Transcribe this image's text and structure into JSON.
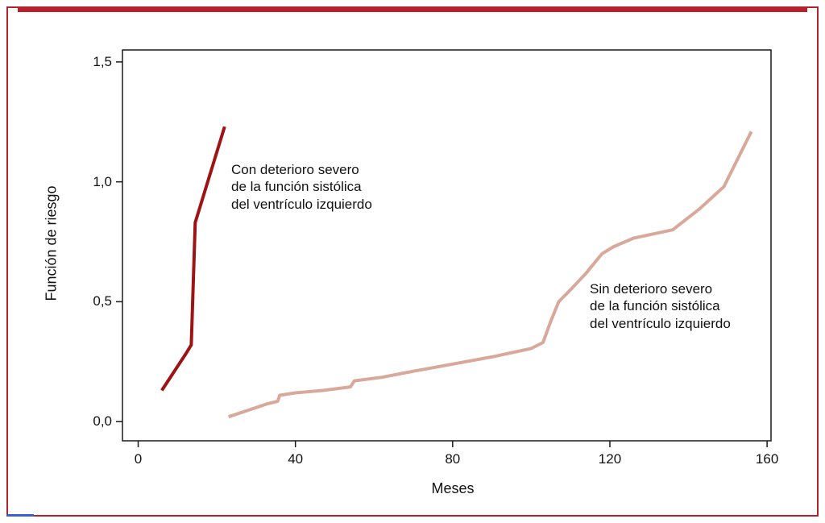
{
  "figure": {
    "border_color": "#b5222b",
    "top_rule_color": "#b5222b",
    "bottom_mark_color": "#3a5fd0",
    "background": "#ffffff"
  },
  "chart_data": {
    "type": "line",
    "title": "",
    "xlabel": "Meses",
    "ylabel": "Función de riesgo",
    "xlim": [
      -4,
      161
    ],
    "ylim": [
      -0.08,
      1.55
    ],
    "x_ticks": [
      0,
      40,
      80,
      120,
      160
    ],
    "x_tick_labels": [
      "0",
      "40",
      "80",
      "120",
      "160"
    ],
    "y_ticks": [
      0.0,
      0.5,
      1.0,
      1.5
    ],
    "y_tick_labels": [
      "0,0",
      "0,5",
      "1,0",
      "1,5"
    ],
    "grid": false,
    "frame": true,
    "legend_position": "inline-annotations",
    "series": [
      {
        "name": "Con deterioro severo de la función sistólica del ventrículo izquierdo",
        "color": "#9e1414",
        "width": 4,
        "points": [
          [
            6,
            0.13
          ],
          [
            12,
            0.28
          ],
          [
            13.5,
            0.32
          ],
          [
            14.5,
            0.83
          ],
          [
            22,
            1.23
          ]
        ]
      },
      {
        "name": "Sin deterioro severo de la función sistólica del ventrículo izquierdo",
        "color": "#d8a89b",
        "width": 4,
        "points": [
          [
            23,
            0.02
          ],
          [
            33,
            0.075
          ],
          [
            35.5,
            0.085
          ],
          [
            36,
            0.11
          ],
          [
            40,
            0.12
          ],
          [
            47,
            0.13
          ],
          [
            54,
            0.145
          ],
          [
            55,
            0.17
          ],
          [
            62,
            0.185
          ],
          [
            70,
            0.21
          ],
          [
            80,
            0.24
          ],
          [
            90,
            0.27
          ],
          [
            100,
            0.305
          ],
          [
            103,
            0.33
          ],
          [
            105,
            0.42
          ],
          [
            107,
            0.5
          ],
          [
            110,
            0.55
          ],
          [
            114,
            0.62
          ],
          [
            118,
            0.7
          ],
          [
            121,
            0.73
          ],
          [
            126,
            0.765
          ],
          [
            136,
            0.8
          ],
          [
            143,
            0.89
          ],
          [
            149,
            0.98
          ],
          [
            156,
            1.21
          ]
        ]
      }
    ],
    "annotations": [
      {
        "text": "Con deterioro severo\nde la función sistólica\ndel ventrículo izquierdo",
        "anchor_series": 0
      },
      {
        "text": "Sin deterioro severo\nde la función sistólica\ndel ventrículo izquierdo",
        "anchor_series": 1
      }
    ]
  }
}
